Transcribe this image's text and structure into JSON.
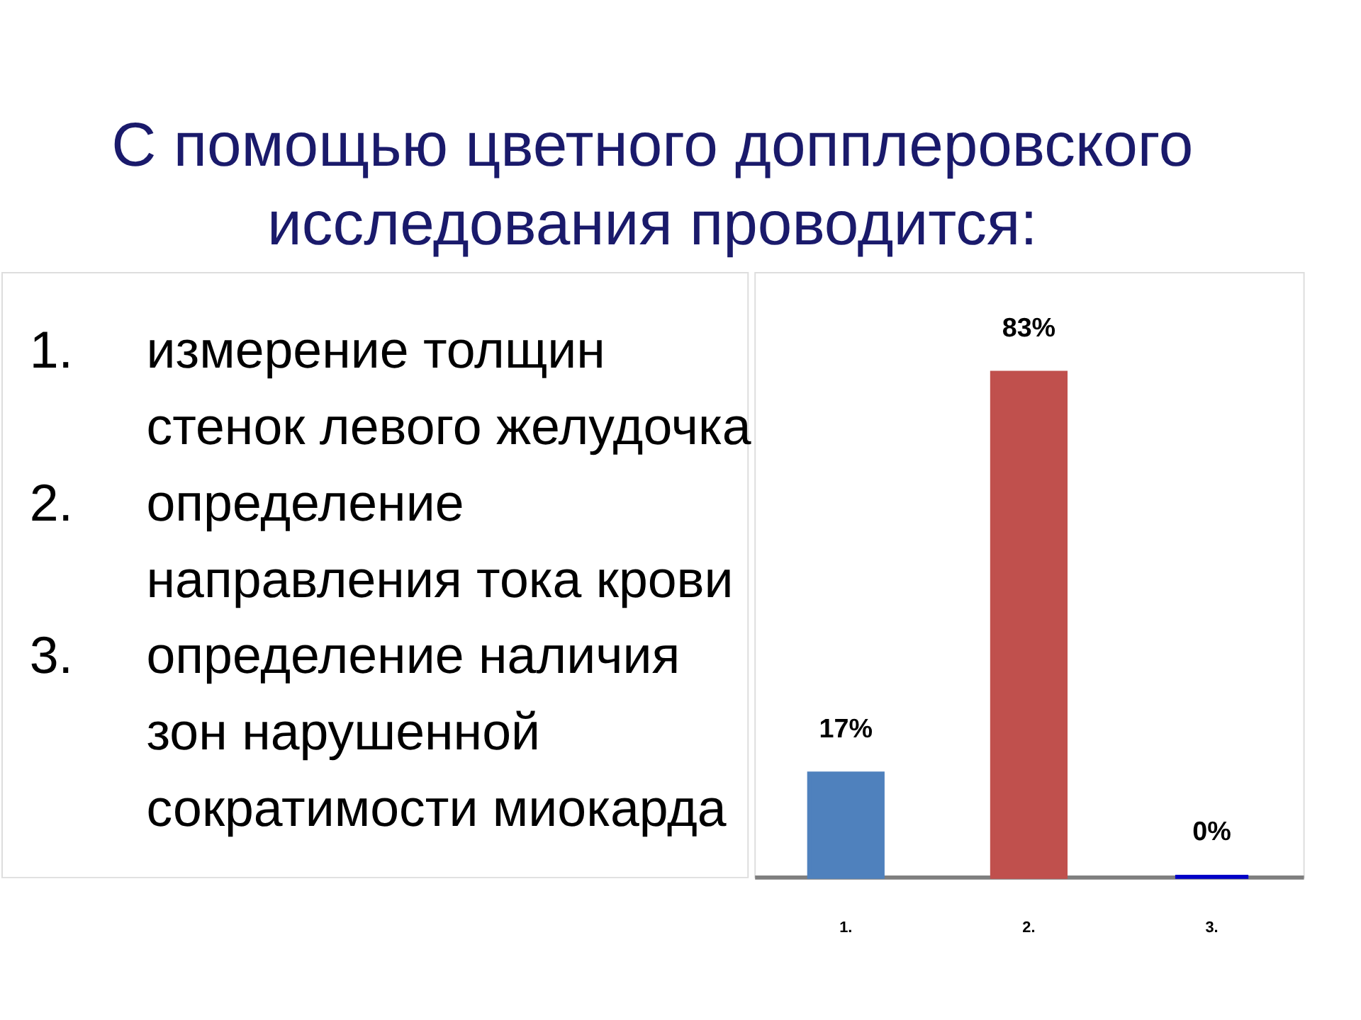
{
  "chart_data": {
    "type": "bar",
    "title": "С помощью цветного допплеровского\nисследования проводится:",
    "categories": [
      "1.",
      "2.",
      "3."
    ],
    "values": [
      17,
      83,
      0
    ],
    "colors": [
      "#4f81bd",
      "#c0504d",
      "#0000c8"
    ],
    "value_labels": [
      "17%",
      "83%",
      "0%"
    ],
    "annotations": [
      "1. измерение толщин\nстенок левого желудочка",
      "2. определение\nнаправления тока крови",
      "3. определение наличия\nзон нарушенной\nсократимости миокарда"
    ],
    "tick_labels": "x",
    "grid": false,
    "legend": false
  }
}
